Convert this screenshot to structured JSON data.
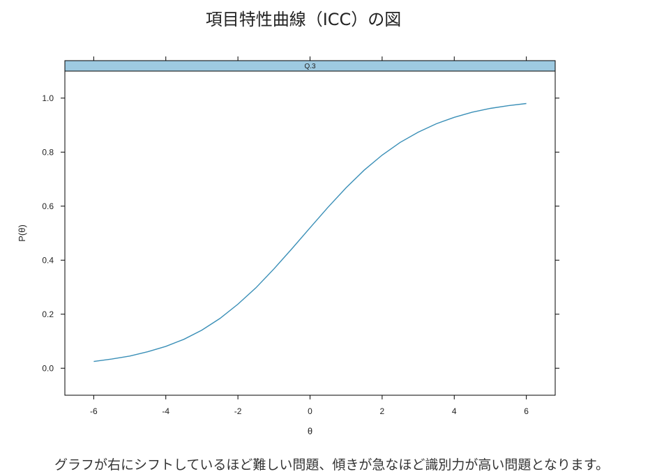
{
  "page": {
    "title": "項目特性曲線（ICC）の図",
    "caption": "グラフが右にシフトしているほど難しい問題、傾きが急なほど識別力が高い問題となります。"
  },
  "chart_data": {
    "type": "line",
    "title": "",
    "panel_label": "Q.3",
    "xlabel": "θ",
    "ylabel": "P(θ)",
    "xlim": [
      -6.8,
      6.8
    ],
    "ylim": [
      -0.1,
      1.1
    ],
    "x_ticks": [
      -6,
      -4,
      -2,
      0,
      2,
      4,
      6
    ],
    "x_tick_labels": [
      "-6",
      "-4",
      "-2",
      "0",
      "2",
      "4",
      "6"
    ],
    "y_ticks": [
      0.0,
      0.2,
      0.4,
      0.6,
      0.8,
      1.0
    ],
    "y_tick_labels": [
      "0.0",
      "0.2",
      "0.4",
      "0.6",
      "0.8",
      "1.0"
    ],
    "grid": false,
    "colors": {
      "line": "#3a8fb7",
      "strip": "#9ecae1"
    },
    "series": [
      {
        "x": [
          -6,
          -5.5,
          -5,
          -4.5,
          -4,
          -3.5,
          -3,
          -2.5,
          -2,
          -1.5,
          -1,
          -0.5,
          0,
          0.5,
          1,
          1.5,
          2,
          2.5,
          3,
          3.5,
          4,
          4.5,
          5,
          5.5,
          6
        ],
        "y": [
          0.025,
          0.034,
          0.045,
          0.061,
          0.081,
          0.107,
          0.141,
          0.184,
          0.237,
          0.298,
          0.368,
          0.443,
          0.52,
          0.596,
          0.668,
          0.733,
          0.789,
          0.836,
          0.874,
          0.905,
          0.929,
          0.948,
          0.962,
          0.972,
          0.98
        ]
      }
    ]
  }
}
